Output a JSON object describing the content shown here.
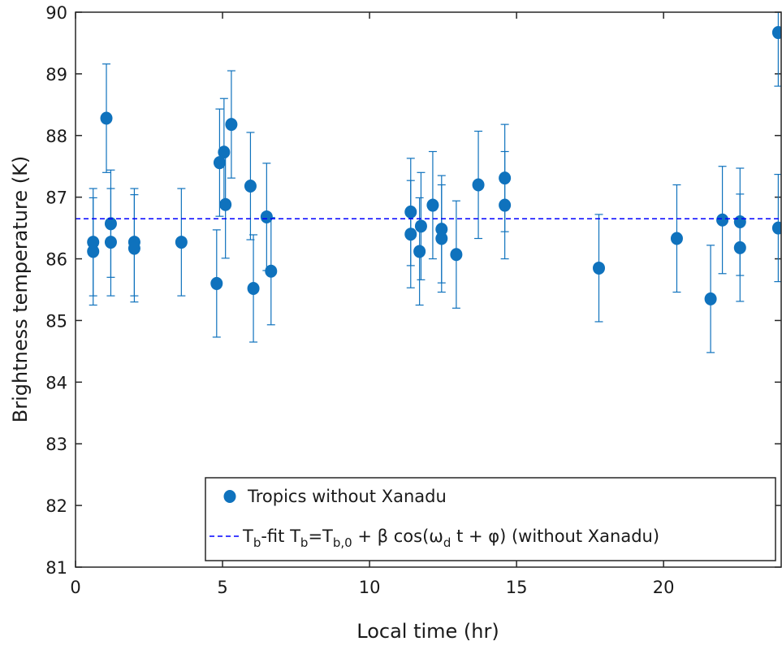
{
  "chart_data": {
    "type": "scatter",
    "xlabel": "Local time (hr)",
    "ylabel": "Brightness temperature (K)",
    "xlim": [
      0,
      24
    ],
    "ylim": [
      81,
      90
    ],
    "xticks": [
      0,
      5,
      10,
      15,
      20
    ],
    "yticks": [
      81,
      82,
      83,
      84,
      85,
      86,
      87,
      88,
      89,
      90
    ],
    "legend": "lower right",
    "series": [
      {
        "name": "Tropics without Xanadu",
        "kind": "errorbar",
        "color": "#0f72bd",
        "x": [
          0.6,
          0.6,
          1.05,
          1.2,
          1.2,
          2.0,
          2.0,
          3.6,
          4.8,
          4.9,
          5.05,
          5.1,
          5.3,
          5.95,
          6.05,
          6.5,
          6.65,
          11.4,
          11.4,
          11.7,
          11.75,
          12.15,
          12.45,
          12.45,
          12.95,
          13.7,
          14.6,
          14.6,
          17.8,
          20.45,
          21.6,
          22.0,
          22.6,
          22.6,
          23.9,
          23.9
        ],
        "values": [
          86.27,
          86.12,
          88.28,
          86.57,
          86.27,
          86.27,
          86.17,
          86.27,
          85.6,
          87.56,
          87.73,
          86.88,
          88.18,
          87.18,
          85.52,
          86.68,
          85.8,
          86.76,
          86.4,
          86.12,
          86.53,
          86.87,
          86.48,
          86.33,
          86.07,
          87.2,
          87.31,
          86.87,
          85.85,
          86.33,
          85.35,
          86.63,
          86.6,
          86.18,
          89.67,
          86.5
        ],
        "errors": [
          0.87,
          0.87,
          0.88,
          0.87,
          0.87,
          0.87,
          0.87,
          0.87,
          0.87,
          0.87,
          0.87,
          0.87,
          0.87,
          0.87,
          0.87,
          0.87,
          0.87,
          0.87,
          0.87,
          0.87,
          0.87,
          0.87,
          0.87,
          0.87,
          0.87,
          0.87,
          0.87,
          0.87,
          0.87,
          0.87,
          0.87,
          0.87,
          0.87,
          0.87,
          0.87,
          0.87
        ]
      },
      {
        "name": [
          {
            "text": "T"
          },
          {
            "text": "b",
            "sub": true
          },
          {
            "text": "-fit T"
          },
          {
            "text": "b",
            "sub": true
          },
          {
            "text": "=T"
          },
          {
            "text": "b,0",
            "sub": true
          },
          {
            "text": " + β cos(ω"
          },
          {
            "text": "d",
            "sub": true
          },
          {
            "text": " t + φ) (without Xanadu)"
          }
        ],
        "kind": "hline",
        "color": "#0000ff",
        "dash": true,
        "value": 86.65
      }
    ]
  }
}
